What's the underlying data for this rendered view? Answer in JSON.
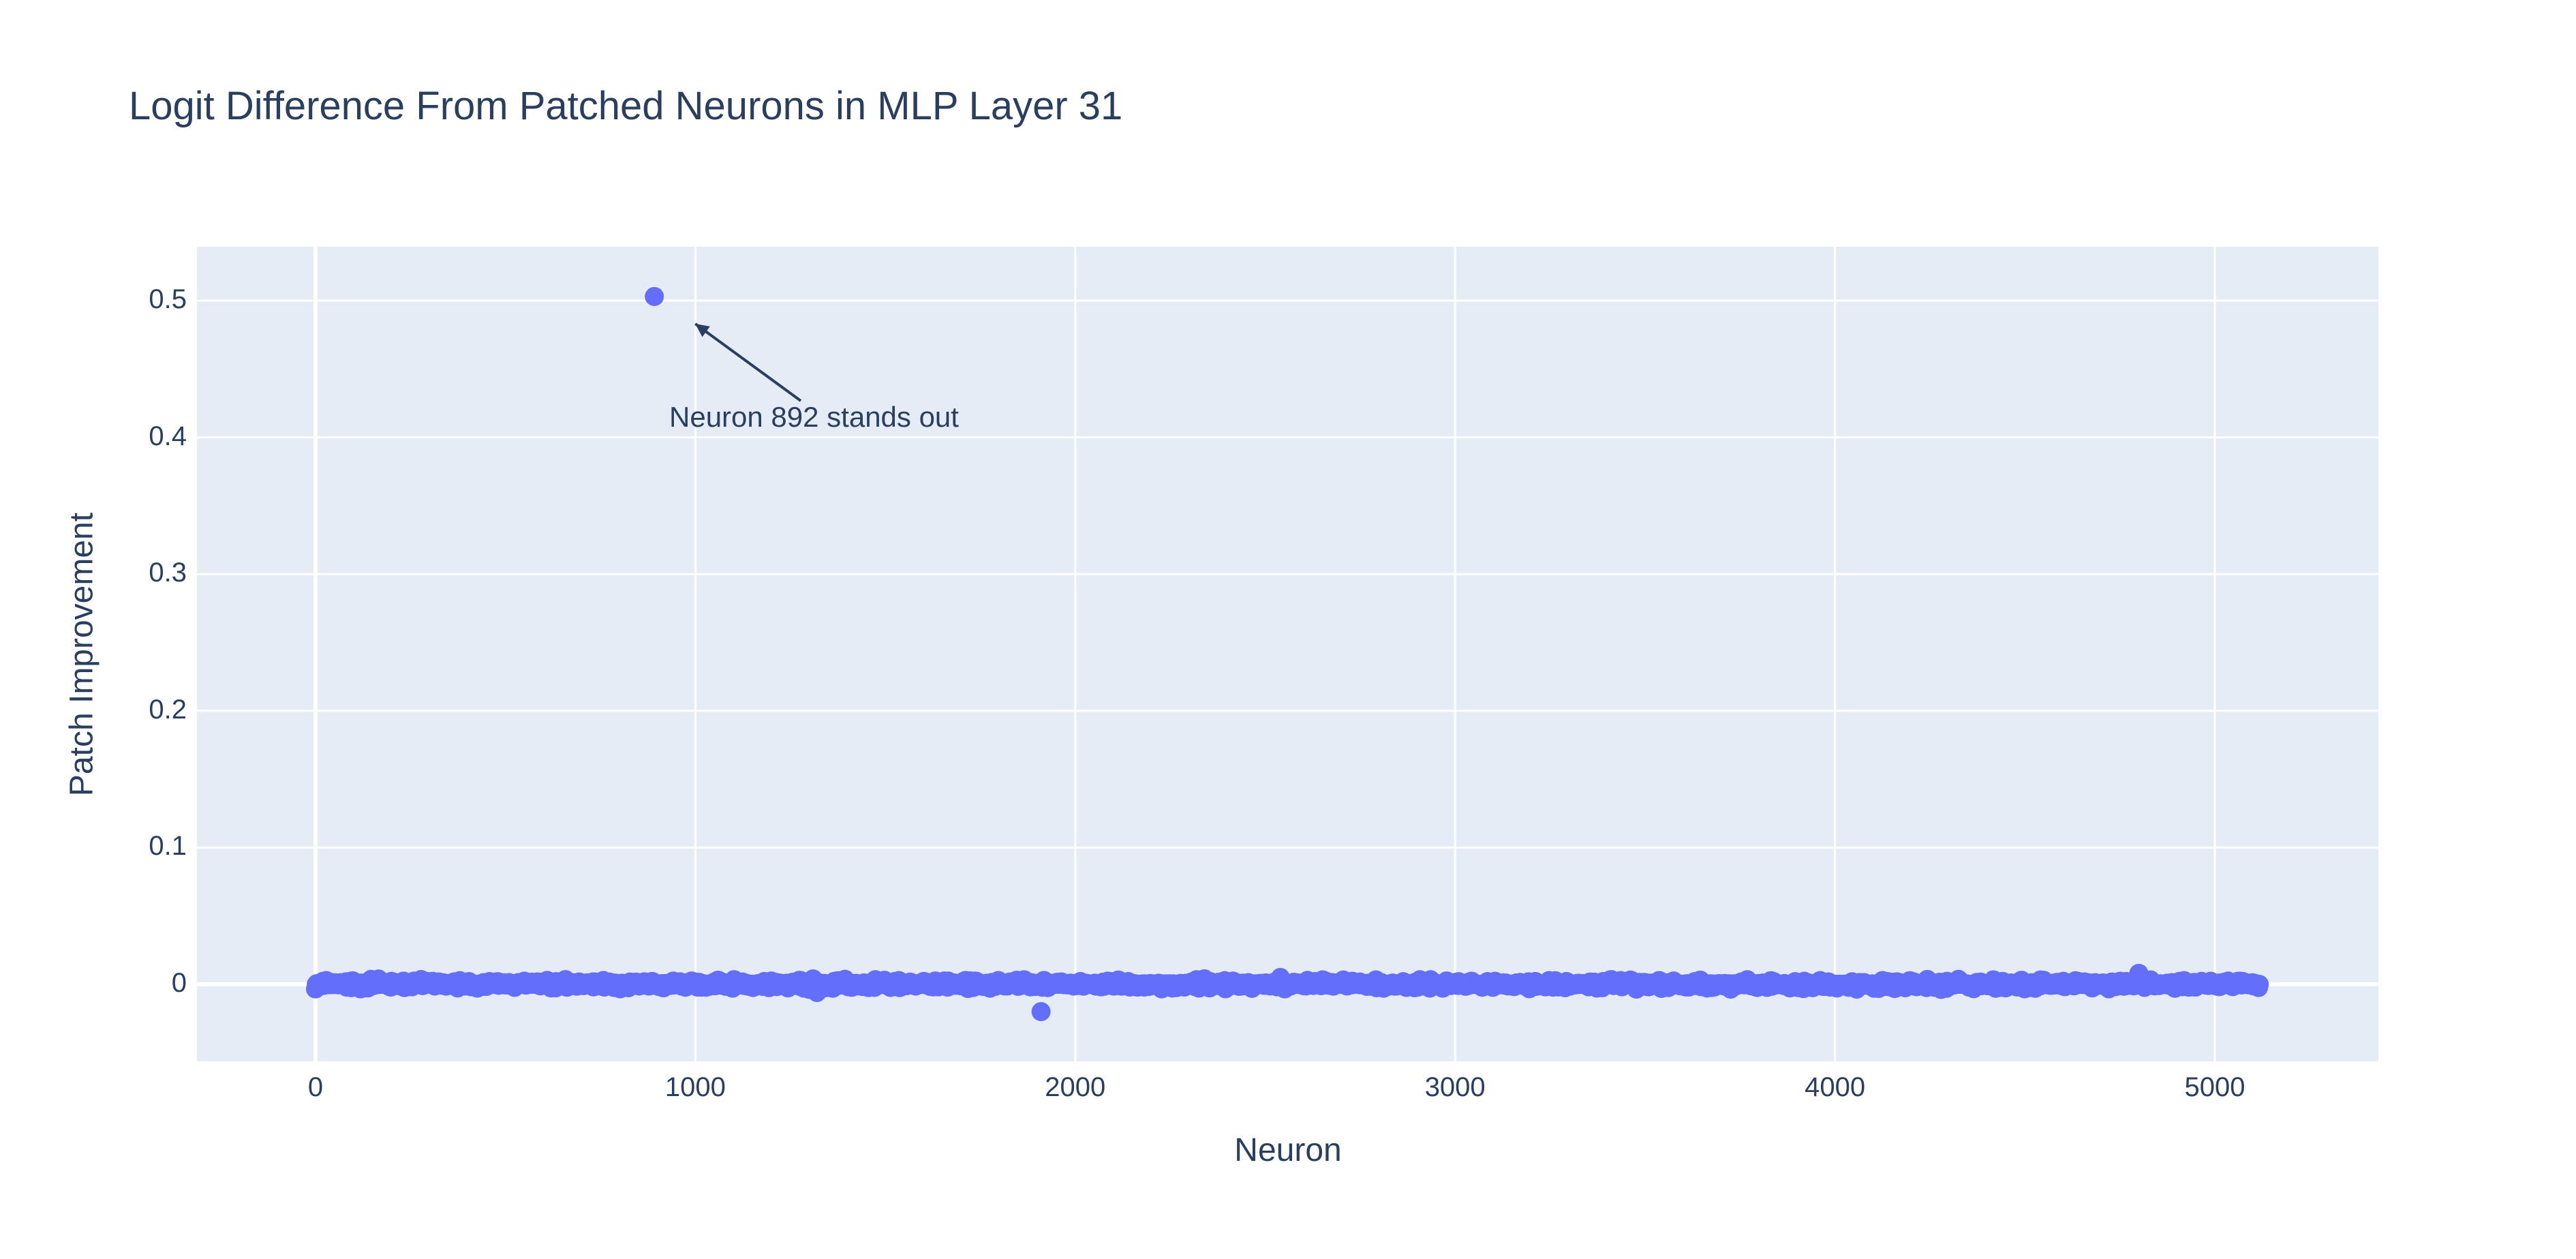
{
  "chart_data": {
    "type": "scatter",
    "title": "Logit Difference From Patched Neurons in MLP Layer 31",
    "xlabel": "Neuron",
    "ylabel": "Patch Improvement",
    "xlim": [
      -310,
      5440
    ],
    "ylim": [
      -0.057,
      0.54
    ],
    "x_ticks": [
      0,
      1000,
      2000,
      3000,
      4000,
      5000
    ],
    "x_tick_labels": [
      "0",
      "1000",
      "2000",
      "3000",
      "4000",
      "5000"
    ],
    "y_ticks": [
      0,
      0.1,
      0.2,
      0.3,
      0.4,
      0.5
    ],
    "y_tick_labels": [
      "0",
      "0.1",
      "0.2",
      "0.3",
      "0.4",
      "0.5"
    ],
    "grid": true,
    "legend": null,
    "marker_color": "#636efa",
    "n_points_approx": 5120,
    "x_range_of_data": [
      0,
      5119
    ],
    "bulk_value_range": [
      -0.004,
      0.004
    ],
    "notable_points": [
      {
        "x": 892,
        "y": 0.503,
        "label": "Neuron 892 stands out"
      },
      {
        "x": 1910,
        "y": -0.02
      },
      {
        "x": 1320,
        "y": -0.006
      },
      {
        "x": 4800,
        "y": 0.008
      },
      {
        "x": 2540,
        "y": 0.005
      },
      {
        "x": 2340,
        "y": 0.004
      }
    ],
    "annotations": [
      {
        "text": "Neuron 892 stands out",
        "arrow_to": {
          "x": 892,
          "y": 0.503
        }
      }
    ]
  },
  "colors": {
    "plot_bg": "#e5ecf6",
    "grid": "#ffffff",
    "text": "#2a3f5f",
    "marker": "#636efa"
  }
}
